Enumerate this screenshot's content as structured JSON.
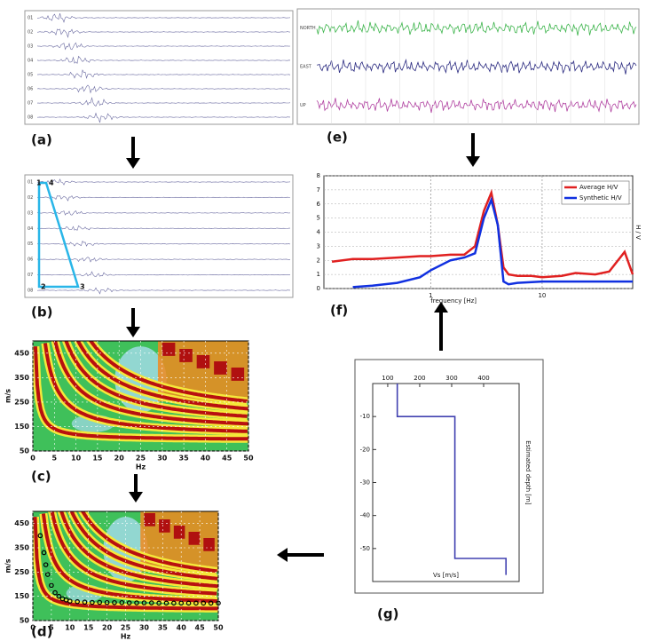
{
  "chart_data": [
    {
      "type": "traces",
      "label": "(a)",
      "channels": [
        "01",
        "02",
        "03",
        "04",
        "05",
        "06",
        "07",
        "08"
      ]
    },
    {
      "type": "traces",
      "label": "(b)",
      "channels": [
        "01",
        "02",
        "03",
        "04",
        "05",
        "06",
        "07",
        "08"
      ],
      "markers": [
        "1",
        "4",
        "2",
        "3"
      ]
    },
    {
      "type": "heatmap",
      "label": "(c)",
      "xlabel": "Hz",
      "ylabel": "m/s",
      "xlim": [
        0,
        50
      ],
      "ylim": [
        50,
        500
      ],
      "xticks": [
        0,
        5,
        10,
        15,
        20,
        25,
        30,
        35,
        40,
        45,
        50
      ],
      "yticks": [
        50,
        150,
        250,
        350,
        450
      ],
      "grid": true
    },
    {
      "type": "scatter",
      "label": "(d)",
      "xlabel": "Hz",
      "ylabel": "m/s",
      "xlim": [
        0,
        50
      ],
      "ylim": [
        50,
        500
      ],
      "xticks": [
        0,
        5,
        10,
        15,
        20,
        25,
        30,
        35,
        40,
        45,
        50
      ],
      "yticks": [
        50,
        150,
        250,
        350,
        450
      ],
      "grid": true,
      "series": [
        {
          "color": "#000000",
          "x": [
            2,
            3,
            3.5,
            4,
            5,
            6,
            7,
            8,
            9,
            10,
            12,
            14,
            16,
            18,
            20,
            22,
            24,
            26,
            28,
            30,
            32,
            34,
            36,
            38,
            40,
            42,
            44,
            46,
            48,
            50
          ],
          "values": [
            400,
            330,
            280,
            240,
            195,
            165,
            150,
            140,
            135,
            130,
            128,
            126,
            125,
            125,
            124,
            124,
            124,
            123,
            123,
            123,
            123,
            122,
            122,
            122,
            122,
            122,
            122,
            122,
            122,
            122
          ]
        }
      ]
    },
    {
      "type": "traces",
      "label": "(e)",
      "channels": [
        "NORTH",
        "EAST",
        "UP"
      ],
      "colors": [
        "#3cb44b",
        "#2a2a80",
        "#b040a0"
      ]
    },
    {
      "type": "line",
      "label": "(f)",
      "xlabel": "frequency [Hz]",
      "ylabel": "H / V",
      "xlog": true,
      "xlim": [
        0.11,
        65
      ],
      "ylim": [
        0,
        8
      ],
      "xticks": [
        1,
        10
      ],
      "yticks": [
        0,
        1,
        2,
        3,
        4,
        5,
        6,
        7,
        8
      ],
      "grid": true,
      "legend": "upper right",
      "series": [
        {
          "name": "Average H/V",
          "color": "#e02020",
          "x": [
            0.13,
            0.2,
            0.3,
            0.5,
            0.8,
            1,
            1.5,
            2,
            2.5,
            3,
            3.5,
            4,
            4.5,
            5,
            6,
            8,
            10,
            15,
            20,
            30,
            40,
            55,
            65
          ],
          "values": [
            1.9,
            2.1,
            2.1,
            2.2,
            2.3,
            2.3,
            2.4,
            2.4,
            3.0,
            5.5,
            6.8,
            4.5,
            1.5,
            1.0,
            0.9,
            0.9,
            0.8,
            0.9,
            1.1,
            1.0,
            1.2,
            2.6,
            1.0
          ]
        },
        {
          "name": "Synthetic H/V",
          "color": "#1030e0",
          "x": [
            0.2,
            0.3,
            0.5,
            0.8,
            1,
            1.5,
            2,
            2.5,
            3,
            3.5,
            4,
            4.5,
            5,
            6,
            10,
            20,
            65
          ],
          "values": [
            0.1,
            0.2,
            0.4,
            0.8,
            1.3,
            2.0,
            2.2,
            2.5,
            5.0,
            6.3,
            4.5,
            0.5,
            0.3,
            0.4,
            0.5,
            0.5,
            0.5
          ]
        }
      ]
    },
    {
      "type": "step",
      "label": "(g)",
      "xlabel": "Vs [m/s]",
      "ylabel": "Estimated depth [m]",
      "xlim": [
        53,
        511
      ],
      "ylim": [
        -60,
        0
      ],
      "xticks": [
        100,
        200,
        300,
        400
      ],
      "yticks": [
        -10,
        -20,
        -30,
        -40,
        -50
      ],
      "series": [
        {
          "color": "#4040b0",
          "x": [
            130,
            130,
            310,
            310,
            470,
            470
          ],
          "values": [
            0,
            -10,
            -10,
            -53,
            -53,
            -58
          ]
        }
      ]
    }
  ]
}
